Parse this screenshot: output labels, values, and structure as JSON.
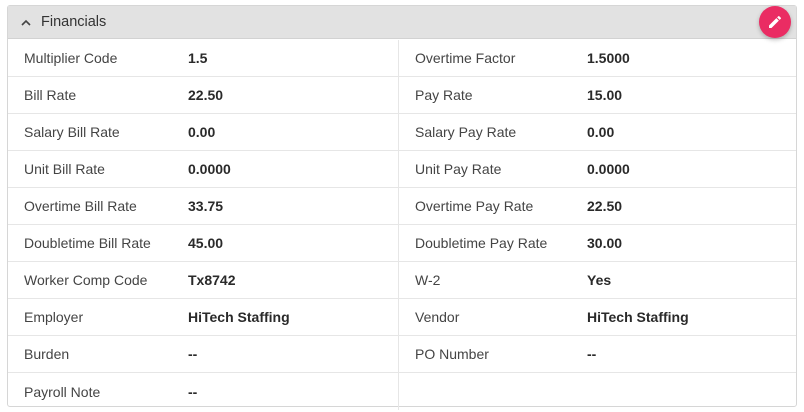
{
  "panel": {
    "title": "Financials",
    "collapse_icon": "chevron-up-icon",
    "edit_icon": "pencil-icon",
    "accent_color": "#ea2c63"
  },
  "rows": [
    {
      "left": {
        "label": "Multiplier Code",
        "value": "1.5"
      },
      "right": {
        "label": "Overtime Factor",
        "value": "1.5000"
      }
    },
    {
      "left": {
        "label": "Bill Rate",
        "value": "22.50"
      },
      "right": {
        "label": "Pay Rate",
        "value": "15.00"
      }
    },
    {
      "left": {
        "label": "Salary Bill Rate",
        "value": "0.00"
      },
      "right": {
        "label": "Salary Pay Rate",
        "value": "0.00"
      }
    },
    {
      "left": {
        "label": "Unit Bill Rate",
        "value": "0.0000"
      },
      "right": {
        "label": "Unit Pay Rate",
        "value": "0.0000"
      }
    },
    {
      "left": {
        "label": "Overtime Bill Rate",
        "value": "33.75"
      },
      "right": {
        "label": "Overtime Pay Rate",
        "value": "22.50"
      }
    },
    {
      "left": {
        "label": "Doubletime Bill Rate",
        "value": "45.00"
      },
      "right": {
        "label": "Doubletime Pay Rate",
        "value": "30.00"
      }
    },
    {
      "left": {
        "label": "Worker Comp Code",
        "value": "Tx8742"
      },
      "right": {
        "label": "W-2",
        "value": "Yes"
      }
    },
    {
      "left": {
        "label": "Employer",
        "value": "HiTech Staffing"
      },
      "right": {
        "label": "Vendor",
        "value": "HiTech Staffing"
      }
    },
    {
      "left": {
        "label": "Burden",
        "value": "--"
      },
      "right": {
        "label": "PO Number",
        "value": "--"
      }
    },
    {
      "left": {
        "label": "Payroll Note",
        "value": "--"
      },
      "right": {
        "label": "",
        "value": ""
      }
    }
  ]
}
